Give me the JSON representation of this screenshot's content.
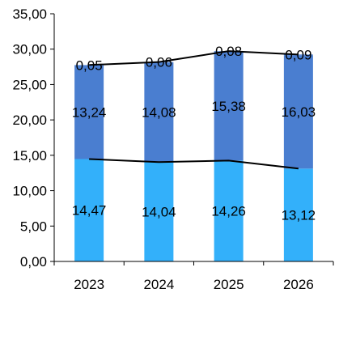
{
  "chart_data": {
    "type": "bar",
    "stacked": true,
    "categories": [
      "2023",
      "2024",
      "2025",
      "2026"
    ],
    "series": [
      {
        "values": [
          14.47,
          14.04,
          14.26,
          13.12
        ],
        "color": "#33b0fa"
      },
      {
        "values": [
          13.24,
          14.08,
          15.38,
          16.03
        ],
        "color": "#4a7ed0"
      },
      {
        "values": [
          0.05,
          0.06,
          0.08,
          0.09
        ],
        "color": "#4a7ed0"
      }
    ],
    "data_labels": [
      [
        "14,47",
        "14,04",
        "14,26",
        "13,12"
      ],
      [
        "13,24",
        "14,08",
        "15,38",
        "16,03"
      ],
      [
        "0,05",
        "0,06",
        "0,08",
        "0,09"
      ]
    ],
    "line_series": [
      {
        "values": [
          14.47,
          14.04,
          14.26,
          13.12
        ],
        "color": "#000000"
      },
      {
        "values": [
          27.76,
          28.18,
          29.72,
          29.24
        ],
        "color": "#000000"
      }
    ],
    "y_ticks": [
      "0,00",
      "5,00",
      "10,00",
      "15,00",
      "20,00",
      "25,00",
      "30,00",
      "35,00"
    ],
    "ylim": [
      0,
      35
    ],
    "y_step": 5,
    "grid": false,
    "legend": "none"
  }
}
